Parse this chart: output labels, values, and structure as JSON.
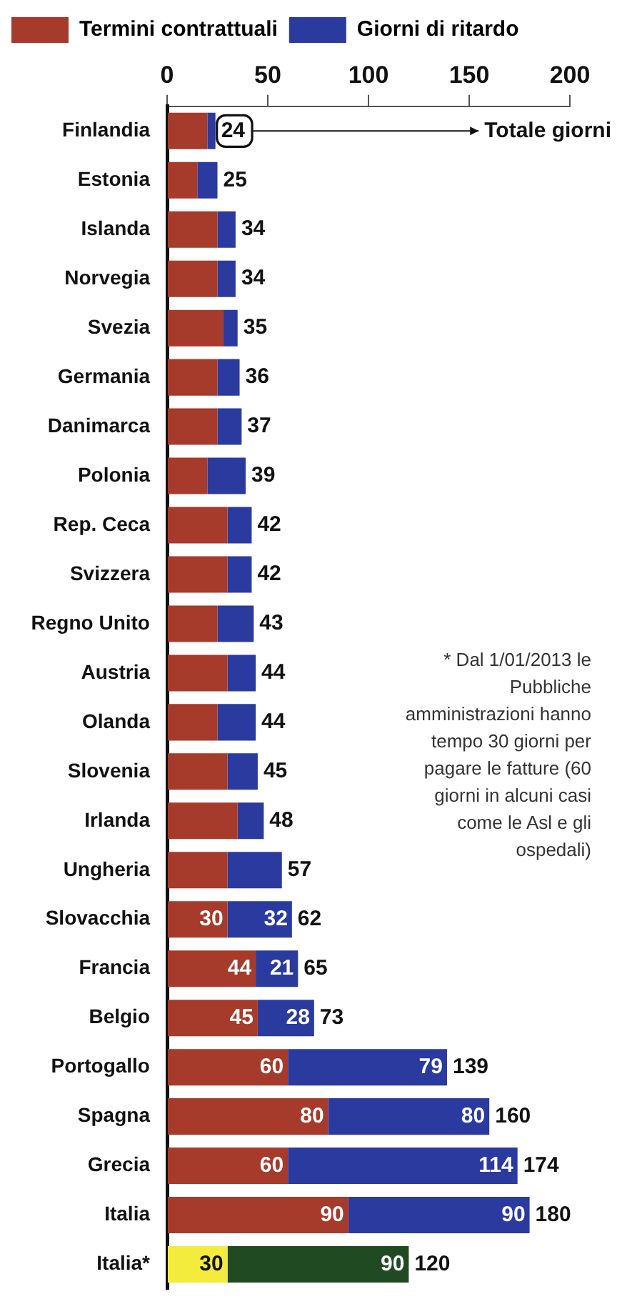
{
  "chart_data": {
    "type": "bar",
    "orientation": "horizontal",
    "stacked": true,
    "legend": "top left",
    "categories": [
      "Finlandia",
      "Estonia",
      "Islanda",
      "Norvegia",
      "Svezia",
      "Germania",
      "Danimarca",
      "Polonia",
      "Rep. Ceca",
      "Svizzera",
      "Regno Unito",
      "Austria",
      "Olanda",
      "Slovenia",
      "Irlanda",
      "Ungheria",
      "Slovacchia",
      "Francia",
      "Belgio",
      "Portogallo",
      "Spagna",
      "Grecia",
      "Italia",
      "Italia*"
    ],
    "series": [
      {
        "name": "Termini contrattuali",
        "color": "#a63a2b",
        "colors": [
          "#a63a2b",
          "#a63a2b",
          "#a63a2b",
          "#a63a2b",
          "#a63a2b",
          "#a63a2b",
          "#a63a2b",
          "#a63a2b",
          "#a63a2b",
          "#a63a2b",
          "#a63a2b",
          "#a63a2b",
          "#a63a2b",
          "#a63a2b",
          "#a63a2b",
          "#a63a2b",
          "#a63a2b",
          "#a63a2b",
          "#a63a2b",
          "#a63a2b",
          "#a63a2b",
          "#a63a2b",
          "#a63a2b",
          "#f4ec3c"
        ],
        "values": [
          20,
          15,
          25,
          25,
          28,
          25,
          25,
          20,
          30,
          30,
          25,
          30,
          25,
          30,
          35,
          30,
          30,
          44,
          45,
          60,
          80,
          60,
          90,
          30
        ],
        "value_labels": [
          null,
          null,
          null,
          null,
          null,
          null,
          null,
          null,
          null,
          null,
          null,
          null,
          null,
          null,
          null,
          null,
          "30",
          "44",
          "45",
          "60",
          "80",
          "60",
          "90",
          "30"
        ]
      },
      {
        "name": "Giorni di ritardo",
        "color": "#2b3a9e",
        "colors": [
          "#2b3a9e",
          "#2b3a9e",
          "#2b3a9e",
          "#2b3a9e",
          "#2b3a9e",
          "#2b3a9e",
          "#2b3a9e",
          "#2b3a9e",
          "#2b3a9e",
          "#2b3a9e",
          "#2b3a9e",
          "#2b3a9e",
          "#2b3a9e",
          "#2b3a9e",
          "#2b3a9e",
          "#2b3a9e",
          "#2b3a9e",
          "#2b3a9e",
          "#2b3a9e",
          "#2b3a9e",
          "#2b3a9e",
          "#2b3a9e",
          "#2b3a9e",
          "#1f4a22"
        ],
        "values": [
          4,
          10,
          9,
          9,
          7,
          11,
          12,
          19,
          12,
          12,
          18,
          14,
          19,
          15,
          13,
          27,
          32,
          21,
          28,
          79,
          80,
          114,
          90,
          90
        ],
        "value_labels": [
          null,
          null,
          null,
          null,
          null,
          null,
          null,
          null,
          null,
          null,
          null,
          null,
          null,
          null,
          null,
          null,
          "32",
          "21",
          "28",
          "79",
          "80",
          "114",
          "90",
          "90"
        ]
      }
    ],
    "totals": [
      "24",
      "25",
      "34",
      "34",
      "35",
      "36",
      "37",
      "39",
      "42",
      "42",
      "43",
      "44",
      "44",
      "45",
      "48",
      "57",
      "62",
      "65",
      "73",
      "139",
      "160",
      "174",
      "180",
      "120"
    ],
    "xlim": [
      0,
      200
    ],
    "xticks": [
      0,
      50,
      100,
      150,
      200
    ],
    "annotations": [
      "Totale giorni",
      "* Dal 1/01/2013 le Pubbliche amministrazioni hanno tempo 30 giorni per pagare le fatture (60 giorni in alcuni casi come le Asl e gli ospedali)"
    ]
  }
}
